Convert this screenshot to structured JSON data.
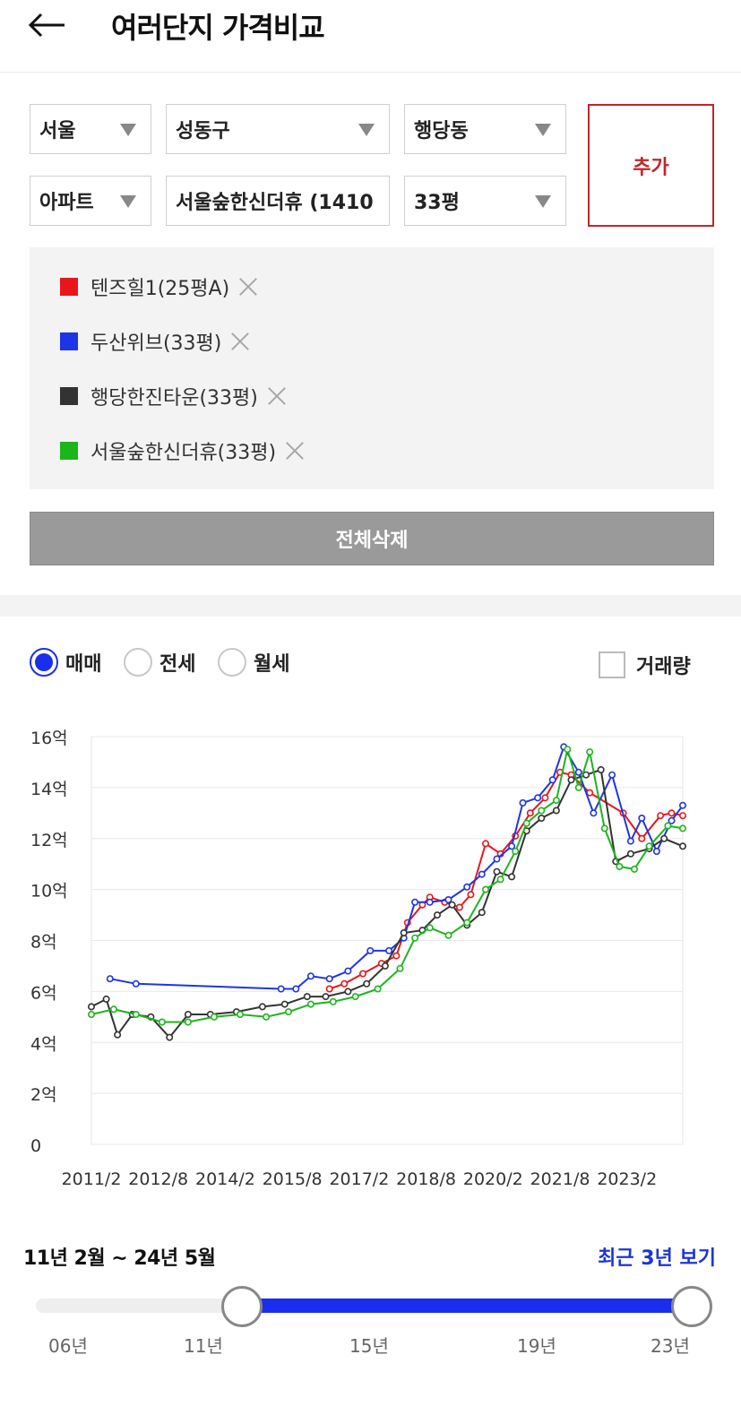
{
  "header": {
    "title": "여러단지 가격비교"
  },
  "filters": {
    "city": "서울",
    "district": "성동구",
    "dong": "행당동",
    "type": "아파트",
    "complex": "서울숲한신더휴 (1410",
    "size": "33평",
    "add_label": "추가"
  },
  "compare_list": [
    {
      "label": "텐즈힐1(25평A)",
      "color": "#e8161b"
    },
    {
      "label": "두산위브(33평)",
      "color": "#1e35e6"
    },
    {
      "label": "행당한진타운(33평)",
      "color": "#333333"
    },
    {
      "label": "서울숲한신더휴(33평)",
      "color": "#1cb51c"
    }
  ],
  "delete_all_label": "전체삭제",
  "tabs": {
    "sale": "매매",
    "jeonse": "전세",
    "monthly": "월세",
    "volume": "거래량",
    "selected": "매매"
  },
  "chart_data": {
    "type": "line",
    "y_unit": "억",
    "ylim": [
      0,
      16
    ],
    "yticks": [
      "0",
      "2억",
      "4억",
      "6억",
      "8억",
      "10억",
      "12억",
      "14억",
      "16억"
    ],
    "xlim": [
      "2011/2",
      "2024/5"
    ],
    "xticks": [
      "2011/2",
      "2012/8",
      "2014/2",
      "2015/8",
      "2017/2",
      "2018/8",
      "2020/2",
      "2021/8",
      "2023/2"
    ],
    "grid": true,
    "series": [
      {
        "name": "텐즈힐1(25평A)",
        "color": "#e8161b",
        "points": [
          [
            "2016/6",
            6.1
          ],
          [
            "2016/10",
            6.3
          ],
          [
            "2017/3",
            6.7
          ],
          [
            "2017/8",
            7.1
          ],
          [
            "2017/12",
            7.4
          ],
          [
            "2018/3",
            8.7
          ],
          [
            "2018/7",
            9.4
          ],
          [
            "2018/9",
            9.7
          ],
          [
            "2019/1",
            9.5
          ],
          [
            "2019/5",
            9.3
          ],
          [
            "2019/8",
            9.8
          ],
          [
            "2019/12",
            11.8
          ],
          [
            "2020/4",
            11.4
          ],
          [
            "2020/8",
            12.1
          ],
          [
            "2020/12",
            13.0
          ],
          [
            "2021/4",
            13.6
          ],
          [
            "2021/8",
            14.6
          ],
          [
            "2021/11",
            14.5
          ],
          [
            "2022/4",
            13.8
          ],
          [
            "2023/1",
            13.0
          ],
          [
            "2023/6",
            12.0
          ],
          [
            "2023/11",
            12.9
          ],
          [
            "2024/2",
            13.0
          ],
          [
            "2024/5",
            12.9
          ]
        ]
      },
      {
        "name": "두산위브(33평)",
        "color": "#1e35e6",
        "points": [
          [
            "2011/7",
            6.5
          ],
          [
            "2012/2",
            6.3
          ],
          [
            "2015/5",
            6.1
          ],
          [
            "2015/9",
            6.1
          ],
          [
            "2016/1",
            6.6
          ],
          [
            "2016/6",
            6.5
          ],
          [
            "2016/11",
            6.8
          ],
          [
            "2017/5",
            7.6
          ],
          [
            "2017/10",
            7.6
          ],
          [
            "2018/2",
            8.1
          ],
          [
            "2018/5",
            9.5
          ],
          [
            "2018/9",
            9.5
          ],
          [
            "2019/2",
            9.6
          ],
          [
            "2019/7",
            10.1
          ],
          [
            "2019/11",
            10.6
          ],
          [
            "2020/3",
            11.2
          ],
          [
            "2020/7",
            11.7
          ],
          [
            "2020/10",
            13.4
          ],
          [
            "2021/2",
            13.6
          ],
          [
            "2021/6",
            14.3
          ],
          [
            "2021/9",
            15.6
          ],
          [
            "2022/1",
            14.6
          ],
          [
            "2022/5",
            13.0
          ],
          [
            "2022/10",
            14.5
          ],
          [
            "2023/3",
            11.9
          ],
          [
            "2023/6",
            12.8
          ],
          [
            "2023/10",
            11.5
          ],
          [
            "2024/2",
            12.7
          ],
          [
            "2024/5",
            13.3
          ]
        ]
      },
      {
        "name": "행당한진타운(33평)",
        "color": "#333333",
        "points": [
          [
            "2011/2",
            5.4
          ],
          [
            "2011/6",
            5.7
          ],
          [
            "2011/9",
            4.3
          ],
          [
            "2012/1",
            5.1
          ],
          [
            "2012/6",
            5.0
          ],
          [
            "2012/11",
            4.2
          ],
          [
            "2013/4",
            5.1
          ],
          [
            "2013/10",
            5.1
          ],
          [
            "2014/5",
            5.2
          ],
          [
            "2014/12",
            5.4
          ],
          [
            "2015/6",
            5.5
          ],
          [
            "2015/12",
            5.8
          ],
          [
            "2016/5",
            5.8
          ],
          [
            "2016/11",
            6.0
          ],
          [
            "2017/4",
            6.3
          ],
          [
            "2017/9",
            7.0
          ],
          [
            "2018/2",
            8.3
          ],
          [
            "2018/7",
            8.4
          ],
          [
            "2018/11",
            9.0
          ],
          [
            "2019/3",
            9.4
          ],
          [
            "2019/7",
            8.6
          ],
          [
            "2019/11",
            9.1
          ],
          [
            "2020/3",
            10.7
          ],
          [
            "2020/7",
            10.5
          ],
          [
            "2020/11",
            12.3
          ],
          [
            "2021/3",
            12.8
          ],
          [
            "2021/7",
            13.1
          ],
          [
            "2021/11",
            14.3
          ],
          [
            "2022/3",
            14.5
          ],
          [
            "2022/7",
            14.7
          ],
          [
            "2022/11",
            11.1
          ],
          [
            "2023/3",
            11.4
          ],
          [
            "2023/8",
            11.6
          ],
          [
            "2023/12",
            12.0
          ],
          [
            "2024/5",
            11.7
          ]
        ]
      },
      {
        "name": "서울숲한신더휴(33평)",
        "color": "#1cb51c",
        "points": [
          [
            "2011/2",
            5.1
          ],
          [
            "2011/8",
            5.3
          ],
          [
            "2012/2",
            5.1
          ],
          [
            "2012/9",
            4.8
          ],
          [
            "2013/4",
            4.8
          ],
          [
            "2013/11",
            5.0
          ],
          [
            "2014/6",
            5.1
          ],
          [
            "2015/1",
            5.0
          ],
          [
            "2015/7",
            5.2
          ],
          [
            "2016/1",
            5.5
          ],
          [
            "2016/7",
            5.6
          ],
          [
            "2017/1",
            5.8
          ],
          [
            "2017/7",
            6.1
          ],
          [
            "2018/1",
            6.9
          ],
          [
            "2018/5",
            8.1
          ],
          [
            "2018/9",
            8.5
          ],
          [
            "2019/2",
            8.2
          ],
          [
            "2019/7",
            8.7
          ],
          [
            "2019/12",
            10.0
          ],
          [
            "2020/4",
            10.4
          ],
          [
            "2020/8",
            11.5
          ],
          [
            "2020/11",
            12.6
          ],
          [
            "2021/3",
            13.1
          ],
          [
            "2021/7",
            13.5
          ],
          [
            "2021/10",
            15.5
          ],
          [
            "2022/1",
            14.0
          ],
          [
            "2022/4",
            15.4
          ],
          [
            "2022/8",
            12.4
          ],
          [
            "2022/12",
            10.9
          ],
          [
            "2023/4",
            10.8
          ],
          [
            "2023/8",
            11.7
          ],
          [
            "2024/1",
            12.5
          ],
          [
            "2024/5",
            12.4
          ]
        ]
      }
    ]
  },
  "range": {
    "label": "11년 2월 ~ 24년 5월",
    "recent_label": "최근 3년 보기",
    "ticks": [
      "06년",
      "11년",
      "15년",
      "19년",
      "23년"
    ]
  }
}
